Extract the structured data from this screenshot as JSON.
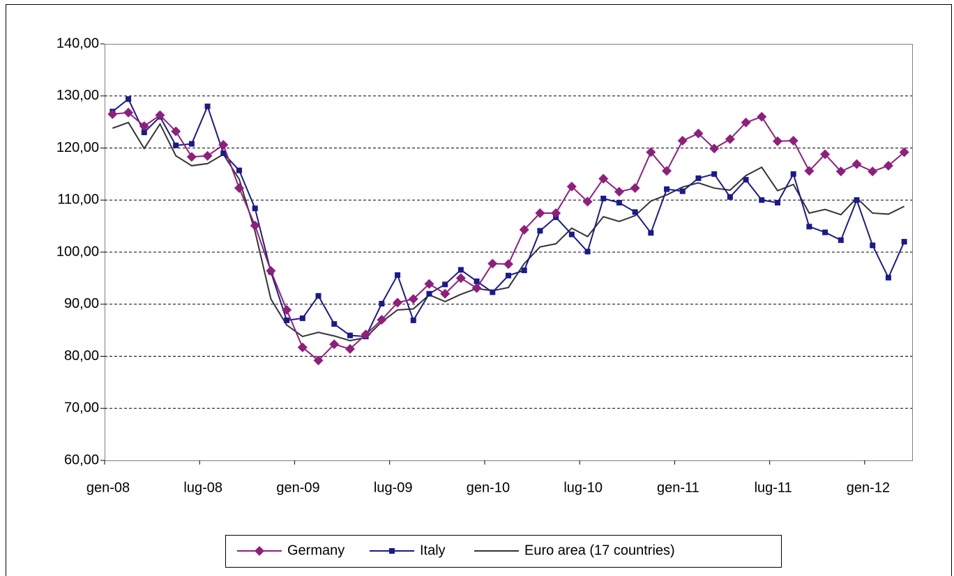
{
  "chart_data": {
    "type": "line",
    "categories": [
      "gen-08",
      null,
      null,
      null,
      null,
      null,
      "lug-08",
      null,
      null,
      null,
      null,
      null,
      "gen-09",
      null,
      null,
      null,
      null,
      null,
      "lug-09",
      null,
      null,
      null,
      null,
      null,
      "gen-10",
      null,
      null,
      null,
      null,
      null,
      "lug-10",
      null,
      null,
      null,
      null,
      null,
      "gen-11",
      null,
      null,
      null,
      null,
      null,
      "lug-11",
      null,
      null,
      null,
      null,
      null,
      "gen-12",
      null,
      null
    ],
    "series": [
      {
        "name": "Germany",
        "color": "#8e1f7c",
        "marker": "diamond",
        "values": [
          126.5,
          126.8,
          124.2,
          126.3,
          123.2,
          118.3,
          118.5,
          120.6,
          112.3,
          105.1,
          96.4,
          88.9,
          81.7,
          79.2,
          82.3,
          81.4,
          84.2,
          87.0,
          90.3,
          91.0,
          93.9,
          92.0,
          95.0,
          93.1,
          97.8,
          97.7,
          104.3,
          107.5,
          107.5,
          112.6,
          109.7,
          114.1,
          111.6,
          112.3,
          119.2,
          115.6,
          121.4,
          122.8,
          119.9,
          121.7,
          124.9,
          126.0,
          121.3,
          121.4,
          115.6,
          118.8,
          115.5,
          116.9,
          115.5,
          116.6,
          119.2
        ]
      },
      {
        "name": "Italy",
        "color": "#1a1a8c",
        "marker": "square",
        "values": [
          127.0,
          129.4,
          123.0,
          126.0,
          120.5,
          120.8,
          128.0,
          119.0,
          115.7,
          108.4,
          96.2,
          86.9,
          87.3,
          91.6,
          86.2,
          84.0,
          83.8,
          90.1,
          95.6,
          86.9,
          92.0,
          93.8,
          96.6,
          94.4,
          92.3,
          95.5,
          96.5,
          104.1,
          106.7,
          103.4,
          100.1,
          110.3,
          109.5,
          107.7,
          103.7,
          112.1,
          111.7,
          114.2,
          115.0,
          110.6,
          113.9,
          110.0,
          109.5,
          115.0,
          104.9,
          103.8,
          102.3,
          110.0,
          101.3,
          95.1,
          102.0
        ]
      },
      {
        "name": "Euro area (17 countries)",
        "color": "#333333",
        "marker": "none",
        "values": [
          123.8,
          124.9,
          119.9,
          124.6,
          118.5,
          116.6,
          117.0,
          118.8,
          114.0,
          104.0,
          91.0,
          86.0,
          83.8,
          84.6,
          83.9,
          83.0,
          83.6,
          86.6,
          88.9,
          89.1,
          91.8,
          90.5,
          91.9,
          93.0,
          92.6,
          93.2,
          97.8,
          101.0,
          101.6,
          104.6,
          103.0,
          106.8,
          105.9,
          107.0,
          109.8,
          111.0,
          112.5,
          113.3,
          112.3,
          111.9,
          114.7,
          116.3,
          111.8,
          113.0,
          107.5,
          108.2,
          107.2,
          110.4,
          107.5,
          107.3,
          108.8
        ]
      }
    ],
    "ylim": [
      60,
      140
    ],
    "yticks": [
      {
        "value": 60,
        "label": "60,00"
      },
      {
        "value": 70,
        "label": "70,00"
      },
      {
        "value": 80,
        "label": "80,00"
      },
      {
        "value": 90,
        "label": "90,00"
      },
      {
        "value": 100,
        "label": "100,00"
      },
      {
        "value": 110,
        "label": "110,00"
      },
      {
        "value": 120,
        "label": "120,00"
      },
      {
        "value": 130,
        "label": "130,00"
      },
      {
        "value": 140,
        "label": "140,00"
      }
    ],
    "grid": true,
    "legend": "bottom"
  }
}
